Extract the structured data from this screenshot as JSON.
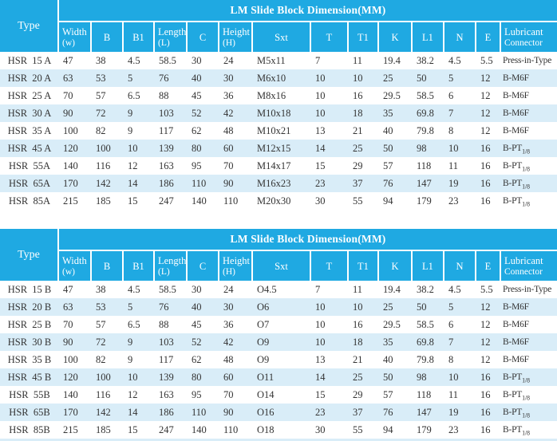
{
  "colors": {
    "header_bg": "#1fa9e2",
    "alt_row_bg": "#d9edf8",
    "row_bg": "#ffffff",
    "header_text": "#ffffff",
    "body_text": "#333333"
  },
  "shared": {
    "span_header": "LM Slide Block Dimension(MM)",
    "type_header": "Type",
    "columns": [
      {
        "label": "Width",
        "sub": "(w)"
      },
      {
        "label": "B"
      },
      {
        "label": "B1"
      },
      {
        "label": "Length",
        "sub": "(L)"
      },
      {
        "label": "C"
      },
      {
        "label": "Height",
        "sub": "(H)"
      },
      {
        "label": "Sxt"
      },
      {
        "label": "T"
      },
      {
        "label": "T1"
      },
      {
        "label": "K"
      },
      {
        "label": "L1"
      },
      {
        "label": "N"
      },
      {
        "label": "E"
      },
      {
        "label": "Lubricant",
        "sub": "Connector"
      }
    ]
  },
  "tables": [
    {
      "series": "A",
      "rows": [
        {
          "type": "HSR  15 A",
          "values": [
            "47",
            "38",
            "4.5",
            "58.5",
            "30",
            "24",
            "M5x11",
            "7",
            "11",
            "19.4",
            "38.2",
            "4.5",
            "5.5"
          ],
          "lub": {
            "base": "Press-in-Type"
          }
        },
        {
          "type": "HSR  20 A",
          "values": [
            "63",
            "53",
            "5",
            "76",
            "40",
            "30",
            "M6x10",
            "10",
            "10",
            "25",
            "50",
            "5",
            "12"
          ],
          "lub": {
            "base": "B-M6F"
          }
        },
        {
          "type": "HSR  25 A",
          "values": [
            "70",
            "57",
            "6.5",
            "88",
            "45",
            "36",
            "M8x16",
            "10",
            "16",
            "29.5",
            "58.5",
            "6",
            "12"
          ],
          "lub": {
            "base": "B-M6F"
          }
        },
        {
          "type": "HSR  30 A",
          "values": [
            "90",
            "72",
            "9",
            "103",
            "52",
            "42",
            "M10x18",
            "10",
            "18",
            "35",
            "69.8",
            "7",
            "12"
          ],
          "lub": {
            "base": "B-M6F"
          }
        },
        {
          "type": "HSR  35 A",
          "values": [
            "100",
            "82",
            "9",
            "117",
            "62",
            "48",
            "M10x21",
            "13",
            "21",
            "40",
            "79.8",
            "8",
            "12"
          ],
          "lub": {
            "base": "B-M6F"
          }
        },
        {
          "type": "HSR  45 A",
          "values": [
            "120",
            "100",
            "10",
            "139",
            "80",
            "60",
            "M12x15",
            "14",
            "25",
            "50",
            "98",
            "10",
            "16"
          ],
          "lub": {
            "base": "B-PT",
            "sub": "1/8"
          }
        },
        {
          "type": "HSR  55A",
          "values": [
            "140",
            "116",
            "12",
            "163",
            "95",
            "70",
            "M14x17",
            "15",
            "29",
            "57",
            "118",
            "11",
            "16"
          ],
          "lub": {
            "base": "B-PT",
            "sub": "1/8"
          }
        },
        {
          "type": "HSR  65A",
          "values": [
            "170",
            "142",
            "14",
            "186",
            "110",
            "90",
            "M16x23",
            "23",
            "37",
            "76",
            "147",
            "19",
            "16"
          ],
          "lub": {
            "base": "B-PT",
            "sub": "1/8"
          }
        },
        {
          "type": "HSR  85A",
          "values": [
            "215",
            "185",
            "15",
            "247",
            "140",
            "110",
            "M20x30",
            "30",
            "55",
            "94",
            "179",
            "23",
            "16"
          ],
          "lub": {
            "base": "B-PT",
            "sub": "1/8"
          }
        }
      ]
    },
    {
      "series": "B",
      "rows": [
        {
          "type": "HSR  15 B",
          "values": [
            "47",
            "38",
            "4.5",
            "58.5",
            "30",
            "24",
            "O4.5",
            "7",
            "11",
            "19.4",
            "38.2",
            "4.5",
            "5.5"
          ],
          "lub": {
            "base": "Press-in-Type"
          }
        },
        {
          "type": "HSR  20 B",
          "values": [
            "63",
            "53",
            "5",
            "76",
            "40",
            "30",
            "O6",
            "10",
            "10",
            "25",
            "50",
            "5",
            "12"
          ],
          "lub": {
            "base": "B-M6F"
          }
        },
        {
          "type": "HSR  25 B",
          "values": [
            "70",
            "57",
            "6.5",
            "88",
            "45",
            "36",
            "O7",
            "10",
            "16",
            "29.5",
            "58.5",
            "6",
            "12"
          ],
          "lub": {
            "base": "B-M6F"
          }
        },
        {
          "type": "HSR  30 B",
          "values": [
            "90",
            "72",
            "9",
            "103",
            "52",
            "42",
            "O9",
            "10",
            "18",
            "35",
            "69.8",
            "7",
            "12"
          ],
          "lub": {
            "base": "B-M6F"
          }
        },
        {
          "type": "HSR  35 B",
          "values": [
            "100",
            "82",
            "9",
            "117",
            "62",
            "48",
            "O9",
            "13",
            "21",
            "40",
            "79.8",
            "8",
            "12"
          ],
          "lub": {
            "base": "B-M6F"
          }
        },
        {
          "type": "HSR  45 B",
          "values": [
            "120",
            "100",
            "10",
            "139",
            "80",
            "60",
            "O11",
            "14",
            "25",
            "50",
            "98",
            "10",
            "16"
          ],
          "lub": {
            "base": "B-PT",
            "sub": "1/8"
          }
        },
        {
          "type": "HSR  55B",
          "values": [
            "140",
            "116",
            "12",
            "163",
            "95",
            "70",
            "O14",
            "15",
            "29",
            "57",
            "118",
            "11",
            "16"
          ],
          "lub": {
            "base": "B-PT",
            "sub": "1/8"
          }
        },
        {
          "type": "HSR  65B",
          "values": [
            "170",
            "142",
            "14",
            "186",
            "110",
            "90",
            "O16",
            "23",
            "37",
            "76",
            "147",
            "19",
            "16"
          ],
          "lub": {
            "base": "B-PT",
            "sub": "1/8"
          }
        },
        {
          "type": "HSR  85B",
          "values": [
            "215",
            "185",
            "15",
            "247",
            "140",
            "110",
            "O18",
            "30",
            "55",
            "94",
            "179",
            "23",
            "16"
          ],
          "lub": {
            "base": "B-PT",
            "sub": "1/8"
          }
        }
      ]
    }
  ]
}
